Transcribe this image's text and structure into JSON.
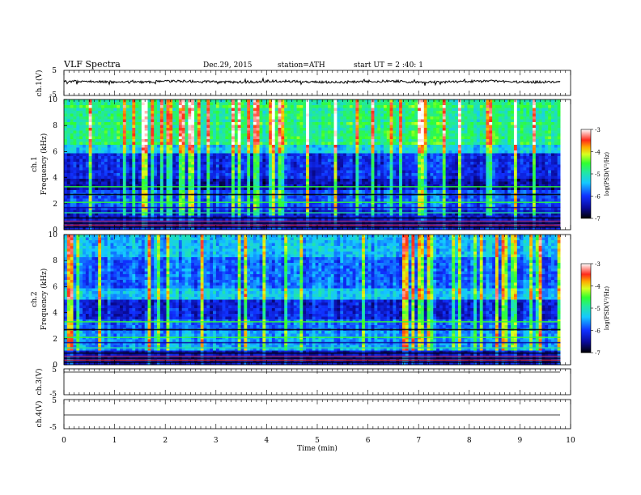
{
  "header": {
    "title": "VLF Spectra",
    "date": "Dec.29, 2015",
    "station": "station=ATH",
    "start": "start UT = 2 :40: 1"
  },
  "chart_data": [
    {
      "type": "line",
      "panel": "ch1-waveform",
      "ylabel": "ch.1(V)",
      "yticks": [
        "5",
        "-5"
      ],
      "ylim": [
        -5,
        5
      ],
      "description_level": 0.0
    },
    {
      "type": "heatmap",
      "panel": "ch1-spectrogram",
      "ylabel_line1": "ch.1",
      "ylabel_line2": "Frequency (kHz)",
      "ylim": [
        0,
        10
      ],
      "yticks": [
        "0",
        "2",
        "4",
        "6",
        "8",
        "10"
      ],
      "colorbar_label": "log(PSD(V²/Hz)",
      "colorbar_ticks": [
        "-3",
        "-4",
        "-5",
        "-6",
        "-7"
      ],
      "colorbar_range": [
        -7,
        -3
      ]
    },
    {
      "type": "heatmap",
      "panel": "ch2-spectrogram",
      "ylabel_line1": "ch.2",
      "ylabel_line2": "Frequency (kHz)",
      "ylim": [
        0,
        10
      ],
      "yticks": [
        "0",
        "2",
        "4",
        "6",
        "8",
        "10"
      ],
      "colorbar_label": "log(PSD(V²/Hz)",
      "colorbar_ticks": [
        "-3",
        "-4",
        "-5",
        "-6",
        "-7"
      ],
      "colorbar_range": [
        -7,
        -3
      ]
    },
    {
      "type": "line",
      "panel": "ch3-waveform",
      "ylabel": "ch.3(V)",
      "yticks": [
        "5",
        "-5"
      ],
      "ylim": [
        -5,
        5
      ]
    },
    {
      "type": "line",
      "panel": "ch4-waveform",
      "ylabel": "ch.4(V)",
      "yticks": [
        "5",
        "-5"
      ],
      "ylim": [
        -5,
        5
      ]
    }
  ],
  "xaxis": {
    "label": "Time (min)",
    "ticks": [
      "0",
      "1",
      "2",
      "3",
      "4",
      "5",
      "6",
      "7",
      "8",
      "9",
      "10"
    ],
    "xlim": [
      0,
      10
    ],
    "data_end": 9.8
  }
}
